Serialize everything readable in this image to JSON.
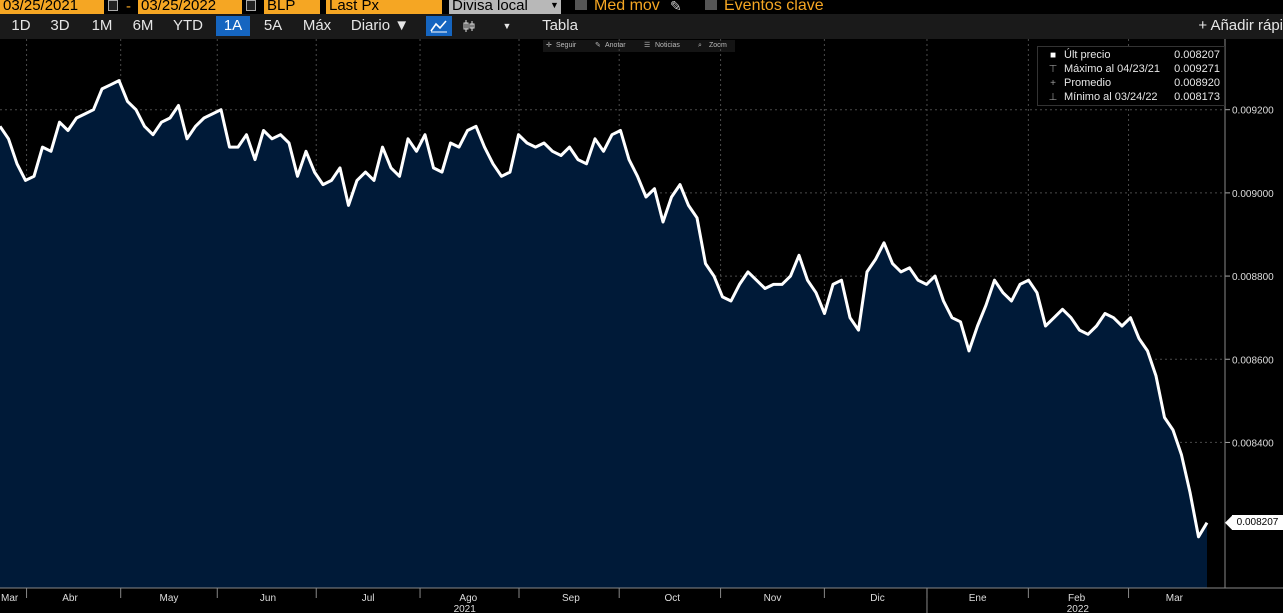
{
  "topbar": {
    "start_date": "03/25/2021",
    "end_date": "03/25/2022",
    "source": "BLP",
    "field": "Last Px",
    "currency": "Divisa local",
    "mov_avg": "Med mov",
    "key_events": "Eventos clave"
  },
  "toolbar": {
    "ranges": [
      "1D",
      "3D",
      "1M",
      "6M",
      "YTD",
      "1A",
      "5A",
      "Máx"
    ],
    "active_range": "1A",
    "period": "Diario ▼",
    "table": "Tabla",
    "add": "+ Añadir rápi"
  },
  "minibar": {
    "follow": "Seguir",
    "annotate": "Anotar",
    "news": "Noticias",
    "zoom": "Zoom"
  },
  "legend": {
    "last_label": "Últ precio",
    "last_value": "0.008207",
    "max_label": "Máximo al 04/23/21",
    "max_value": "0.009271",
    "avg_label": "Promedio",
    "avg_value": "0.008920",
    "min_label": "Mínimo al 03/24/22",
    "min_value": "0.008173"
  },
  "last_badge": "0.008207",
  "colors": {
    "line": "#ffffff",
    "fill": "#001a38",
    "grid": "#4a4a4a",
    "accent": "#f5a623",
    "active": "#1565c0"
  },
  "chart_data": {
    "type": "area",
    "title": "",
    "xlabel": "",
    "ylabel": "",
    "ylim": [
      0.00805,
      0.00937
    ],
    "x_ticks": [
      "Mar",
      "Abr",
      "May",
      "Jun",
      "Jul",
      "Ago",
      "Sep",
      "Oct",
      "Nov",
      "Dic",
      "Ene",
      "Feb",
      "Mar"
    ],
    "year_labels": [
      "2021",
      "2022"
    ],
    "y_ticks": [
      "0.009200",
      "0.009000",
      "0.008800",
      "0.008600",
      "0.008400"
    ],
    "grid": true,
    "series": [
      {
        "values": [
          0.00916,
          0.00913,
          0.00907,
          0.00903,
          0.00904,
          0.00911,
          0.0091,
          0.00917,
          0.00915,
          0.00918,
          0.00919,
          0.0092,
          0.00925,
          0.00926,
          0.00927,
          0.00922,
          0.0092,
          0.00916,
          0.00914,
          0.00917,
          0.00918,
          0.00921,
          0.00913,
          0.00916,
          0.00918,
          0.00919,
          0.0092,
          0.00911,
          0.00911,
          0.00914,
          0.00908,
          0.00915,
          0.00913,
          0.00914,
          0.00912,
          0.00904,
          0.0091,
          0.00905,
          0.00902,
          0.00903,
          0.00906,
          0.00897,
          0.00903,
          0.00905,
          0.00903,
          0.00911,
          0.00906,
          0.00904,
          0.00913,
          0.0091,
          0.00914,
          0.00906,
          0.00905,
          0.00912,
          0.00911,
          0.00915,
          0.00916,
          0.00911,
          0.00907,
          0.00904,
          0.00905,
          0.00914,
          0.00912,
          0.00911,
          0.00912,
          0.0091,
          0.00909,
          0.00911,
          0.00908,
          0.00907,
          0.00913,
          0.0091,
          0.00914,
          0.00915,
          0.00908,
          0.00904,
          0.00899,
          0.00901,
          0.00893,
          0.00899,
          0.00902,
          0.00897,
          0.00894,
          0.00883,
          0.0088,
          0.00875,
          0.00874,
          0.00878,
          0.00881,
          0.00879,
          0.00877,
          0.00878,
          0.00878,
          0.0088,
          0.00885,
          0.00879,
          0.00876,
          0.00871,
          0.00878,
          0.00879,
          0.0087,
          0.00867,
          0.00881,
          0.00884,
          0.00888,
          0.00883,
          0.00881,
          0.00882,
          0.00879,
          0.00878,
          0.0088,
          0.00874,
          0.0087,
          0.00869,
          0.00862,
          0.00868,
          0.00873,
          0.00879,
          0.00876,
          0.00874,
          0.00878,
          0.00879,
          0.00876,
          0.00868,
          0.0087,
          0.00872,
          0.0087,
          0.00867,
          0.00866,
          0.00868,
          0.00871,
          0.0087,
          0.00868,
          0.0087,
          0.00865,
          0.00862,
          0.00856,
          0.00846,
          0.00843,
          0.00837,
          0.00828,
          0.008173,
          0.008207
        ]
      }
    ]
  }
}
